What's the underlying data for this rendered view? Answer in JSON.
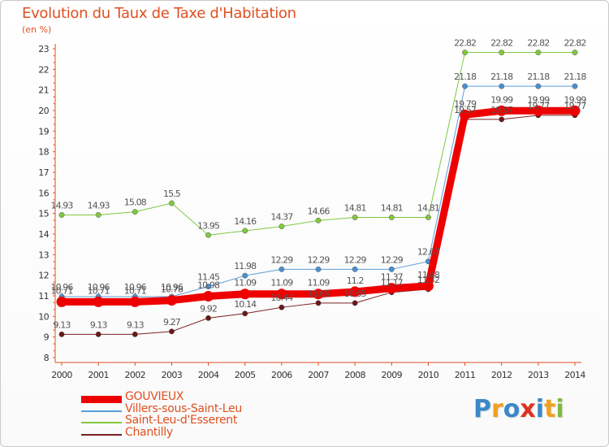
{
  "title": "Evolution du Taux de Taxe d'Habitation",
  "unit_label": "(en %)",
  "logo": {
    "letters": [
      "P",
      "r",
      "o",
      "x",
      "i",
      "t",
      "i"
    ],
    "colors": [
      "#3a88c8",
      "#f0a020",
      "#3a88c8",
      "#e03020",
      "#3a88c8",
      "#f0a020",
      "#80b840"
    ]
  },
  "chart_data": {
    "type": "line",
    "title": "Evolution du Taux de Taxe d'Habitation",
    "xlabel": "",
    "ylabel": "(en %)",
    "ylim": [
      8,
      23
    ],
    "yticks": [
      8,
      9,
      10,
      11,
      12,
      13,
      14,
      15,
      16,
      17,
      18,
      19,
      20,
      21,
      22,
      23
    ],
    "x": [
      2000,
      2001,
      2002,
      2003,
      2004,
      2005,
      2006,
      2007,
      2008,
      2009,
      2010,
      2011,
      2012,
      2013,
      2014
    ],
    "grid": false,
    "series": [
      {
        "name": "Saint-Leu-d'Esserent",
        "color": "#80c840",
        "width": 1,
        "marker": "#80c840",
        "values": [
          14.93,
          14.93,
          15.08,
          15.5,
          13.95,
          14.16,
          14.37,
          14.66,
          14.81,
          14.81,
          14.81,
          22.82,
          22.82,
          22.82,
          22.82
        ],
        "labels": [
          "14.93",
          "14.93",
          "15.08",
          "15.5",
          "13.95",
          "14.16",
          "14.37",
          "14.66",
          "14.81",
          "14.81",
          "14.81",
          "22.82",
          "22.82",
          "22.82",
          "22.82"
        ]
      },
      {
        "name": "Villers-sous-Saint-Leu",
        "color": "#5a9fd8",
        "width": 1,
        "marker": "#4a90d0",
        "values": [
          10.96,
          10.96,
          10.96,
          10.96,
          11.45,
          11.98,
          12.29,
          12.29,
          12.29,
          12.29,
          12.67,
          21.18,
          21.18,
          21.18,
          21.18
        ],
        "labels": [
          "10.96",
          "10.96",
          "10.96",
          "10.96",
          "11.45",
          "11.98",
          "12.29",
          "12.29",
          "12.29",
          "12.29",
          "12.67",
          "21.18",
          "21.18",
          "21.18",
          "21.18"
        ]
      },
      {
        "name": "Chantilly",
        "color": "#7a2020",
        "width": 1,
        "marker": "#6a1818",
        "values": [
          9.13,
          9.13,
          9.13,
          9.27,
          9.92,
          10.14,
          10.44,
          10.65,
          10.65,
          11.17,
          11.32,
          19.57,
          19.57,
          19.77,
          19.77
        ],
        "labels": [
          "9.13",
          "9.13",
          "9.13",
          "9.27",
          "9.92",
          "10.14",
          "10.44",
          "10.65",
          "10.65",
          "11.17",
          "11.32",
          "19.57",
          "19.57",
          "19.77",
          "19.77"
        ]
      },
      {
        "name": "GOUVIEUX",
        "color": "#ee0000",
        "width": 9,
        "marker": "#ee0000",
        "values": [
          10.71,
          10.71,
          10.71,
          10.78,
          10.98,
          11.09,
          11.09,
          11.09,
          11.2,
          11.37,
          11.48,
          19.79,
          19.99,
          19.99,
          19.99
        ],
        "labels": [
          "10.71",
          "10.71",
          "10.71",
          "10.78",
          "10.98",
          "11.09",
          "11.09",
          "11.09",
          "11.2",
          "11.37",
          "11.48",
          "19.79",
          "19.99",
          "19.99",
          "19.99"
        ]
      }
    ]
  },
  "legend": [
    {
      "name": "GOUVIEUX",
      "color": "#ee0000",
      "width": 9
    },
    {
      "name": "Villers-sous-Saint-Leu",
      "color": "#5a9fd8",
      "width": 2
    },
    {
      "name": "Saint-Leu-d'Esserent",
      "color": "#80c840",
      "width": 2
    },
    {
      "name": "Chantilly",
      "color": "#7a2020",
      "width": 2
    }
  ]
}
